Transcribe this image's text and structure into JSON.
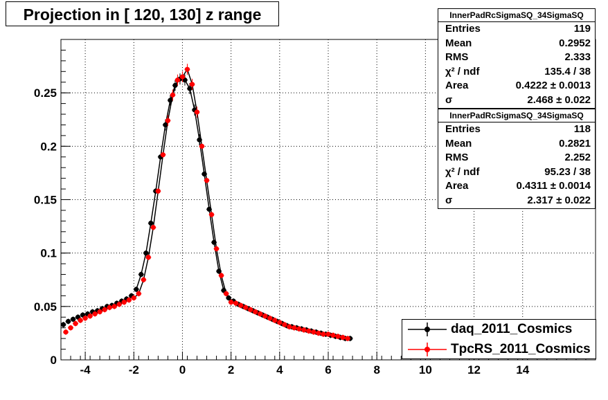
{
  "title": "Projection in [ 120, 130] z range",
  "stats_boxes": [
    {
      "name": "InnerPadRcSigmaSQ_34SigmaSQ",
      "rows": [
        {
          "label": "Entries",
          "value": "119"
        },
        {
          "label": "Mean",
          "value": "0.2952"
        },
        {
          "label": "RMS",
          "value": "2.333"
        },
        {
          "label": "χ² / ndf",
          "value": "135.4 / 38"
        },
        {
          "label": "Area",
          "value": "0.4222 ± 0.0013"
        },
        {
          "label": "σ",
          "value": "2.468 ± 0.022"
        }
      ]
    },
    {
      "name": "InnerPadRcSigmaSQ_34SigmaSQ",
      "rows": [
        {
          "label": "Entries",
          "value": "118"
        },
        {
          "label": "Mean",
          "value": "0.2821"
        },
        {
          "label": "RMS",
          "value": "2.252"
        },
        {
          "label": "χ² / ndf",
          "value": "95.23 / 38"
        },
        {
          "label": "Area",
          "value": "0.4311 ± 0.0014"
        },
        {
          "label": "σ",
          "value": "2.317 ± 0.022"
        }
      ]
    }
  ],
  "legend": [
    {
      "label": "daq_2011_Cosmics",
      "color": "#000000"
    },
    {
      "label": "TpcRS_2011_Cosmics",
      "color": "#ff0000"
    }
  ],
  "chart_data": {
    "type": "scatter",
    "xlim": [
      -5,
      17
    ],
    "ylim": [
      0,
      0.3
    ],
    "x_ticks": [
      -4,
      -2,
      0,
      2,
      4,
      6,
      8,
      10,
      12,
      14
    ],
    "y_ticks": [
      0,
      0.05,
      0.1,
      0.15,
      0.2,
      0.25
    ],
    "y_tick_labels": [
      "0",
      "0.05",
      "0.1",
      "0.15",
      "0.2",
      "0.25"
    ],
    "grid": true,
    "series": [
      {
        "name": "daq_2011_Cosmics",
        "color": "#000000",
        "x": [
          -4.9,
          -4.7,
          -4.5,
          -4.3,
          -4.1,
          -3.9,
          -3.7,
          -3.5,
          -3.3,
          -3.1,
          -2.9,
          -2.7,
          -2.5,
          -2.3,
          -2.1,
          -1.9,
          -1.7,
          -1.5,
          -1.3,
          -1.1,
          -0.9,
          -0.7,
          -0.5,
          -0.3,
          -0.1,
          0.1,
          0.3,
          0.5,
          0.7,
          0.9,
          1.1,
          1.3,
          1.5,
          1.7,
          1.9,
          2.1,
          2.3,
          2.5,
          2.7,
          2.9,
          3.1,
          3.3,
          3.5,
          3.7,
          3.9,
          4.1,
          4.3,
          4.5,
          4.7,
          4.9,
          5.1,
          5.3,
          5.5,
          5.7,
          5.9,
          6.1,
          6.3,
          6.5,
          6.7,
          6.9
        ],
        "y": [
          0.033,
          0.036,
          0.038,
          0.04,
          0.042,
          0.043,
          0.045,
          0.046,
          0.048,
          0.05,
          0.051,
          0.053,
          0.055,
          0.057,
          0.06,
          0.066,
          0.08,
          0.1,
          0.128,
          0.158,
          0.19,
          0.22,
          0.243,
          0.257,
          0.263,
          0.262,
          0.254,
          0.234,
          0.206,
          0.174,
          0.141,
          0.11,
          0.083,
          0.065,
          0.058,
          0.055,
          0.052,
          0.05,
          0.048,
          0.046,
          0.044,
          0.042,
          0.04,
          0.038,
          0.036,
          0.034,
          0.032,
          0.031,
          0.03,
          0.029,
          0.028,
          0.027,
          0.026,
          0.025,
          0.024,
          0.023,
          0.022,
          0.021,
          0.02,
          0.02
        ]
      },
      {
        "name": "TpcRS_2011_Cosmics",
        "color": "#ff0000",
        "x": [
          -4.8,
          -4.6,
          -4.4,
          -4.2,
          -4.0,
          -3.8,
          -3.6,
          -3.4,
          -3.2,
          -3.0,
          -2.8,
          -2.6,
          -2.4,
          -2.2,
          -2.0,
          -1.8,
          -1.6,
          -1.4,
          -1.2,
          -1.0,
          -0.8,
          -0.6,
          -0.4,
          -0.2,
          0.0,
          0.2,
          0.4,
          0.6,
          0.8,
          1.0,
          1.2,
          1.4,
          1.6,
          1.8,
          2.0,
          2.2,
          2.4,
          2.6,
          2.8,
          3.0,
          3.2,
          3.4,
          3.6,
          3.8,
          4.0,
          4.2,
          4.4,
          4.6,
          4.8,
          5.0,
          5.2,
          5.4,
          5.6,
          5.8,
          6.0,
          6.2,
          6.4,
          6.6,
          6.8
        ],
        "y": [
          0.026,
          0.03,
          0.034,
          0.037,
          0.039,
          0.041,
          0.043,
          0.045,
          0.047,
          0.049,
          0.05,
          0.052,
          0.054,
          0.056,
          0.058,
          0.062,
          0.075,
          0.096,
          0.124,
          0.158,
          0.192,
          0.224,
          0.248,
          0.262,
          0.265,
          0.272,
          0.258,
          0.232,
          0.2,
          0.168,
          0.136,
          0.104,
          0.079,
          0.062,
          0.054,
          0.053,
          0.051,
          0.049,
          0.047,
          0.045,
          0.043,
          0.041,
          0.039,
          0.037,
          0.035,
          0.033,
          0.031,
          0.03,
          0.029,
          0.028,
          0.027,
          0.026,
          0.025,
          0.024,
          0.024,
          0.023,
          0.022,
          0.021,
          0.02
        ]
      }
    ]
  }
}
